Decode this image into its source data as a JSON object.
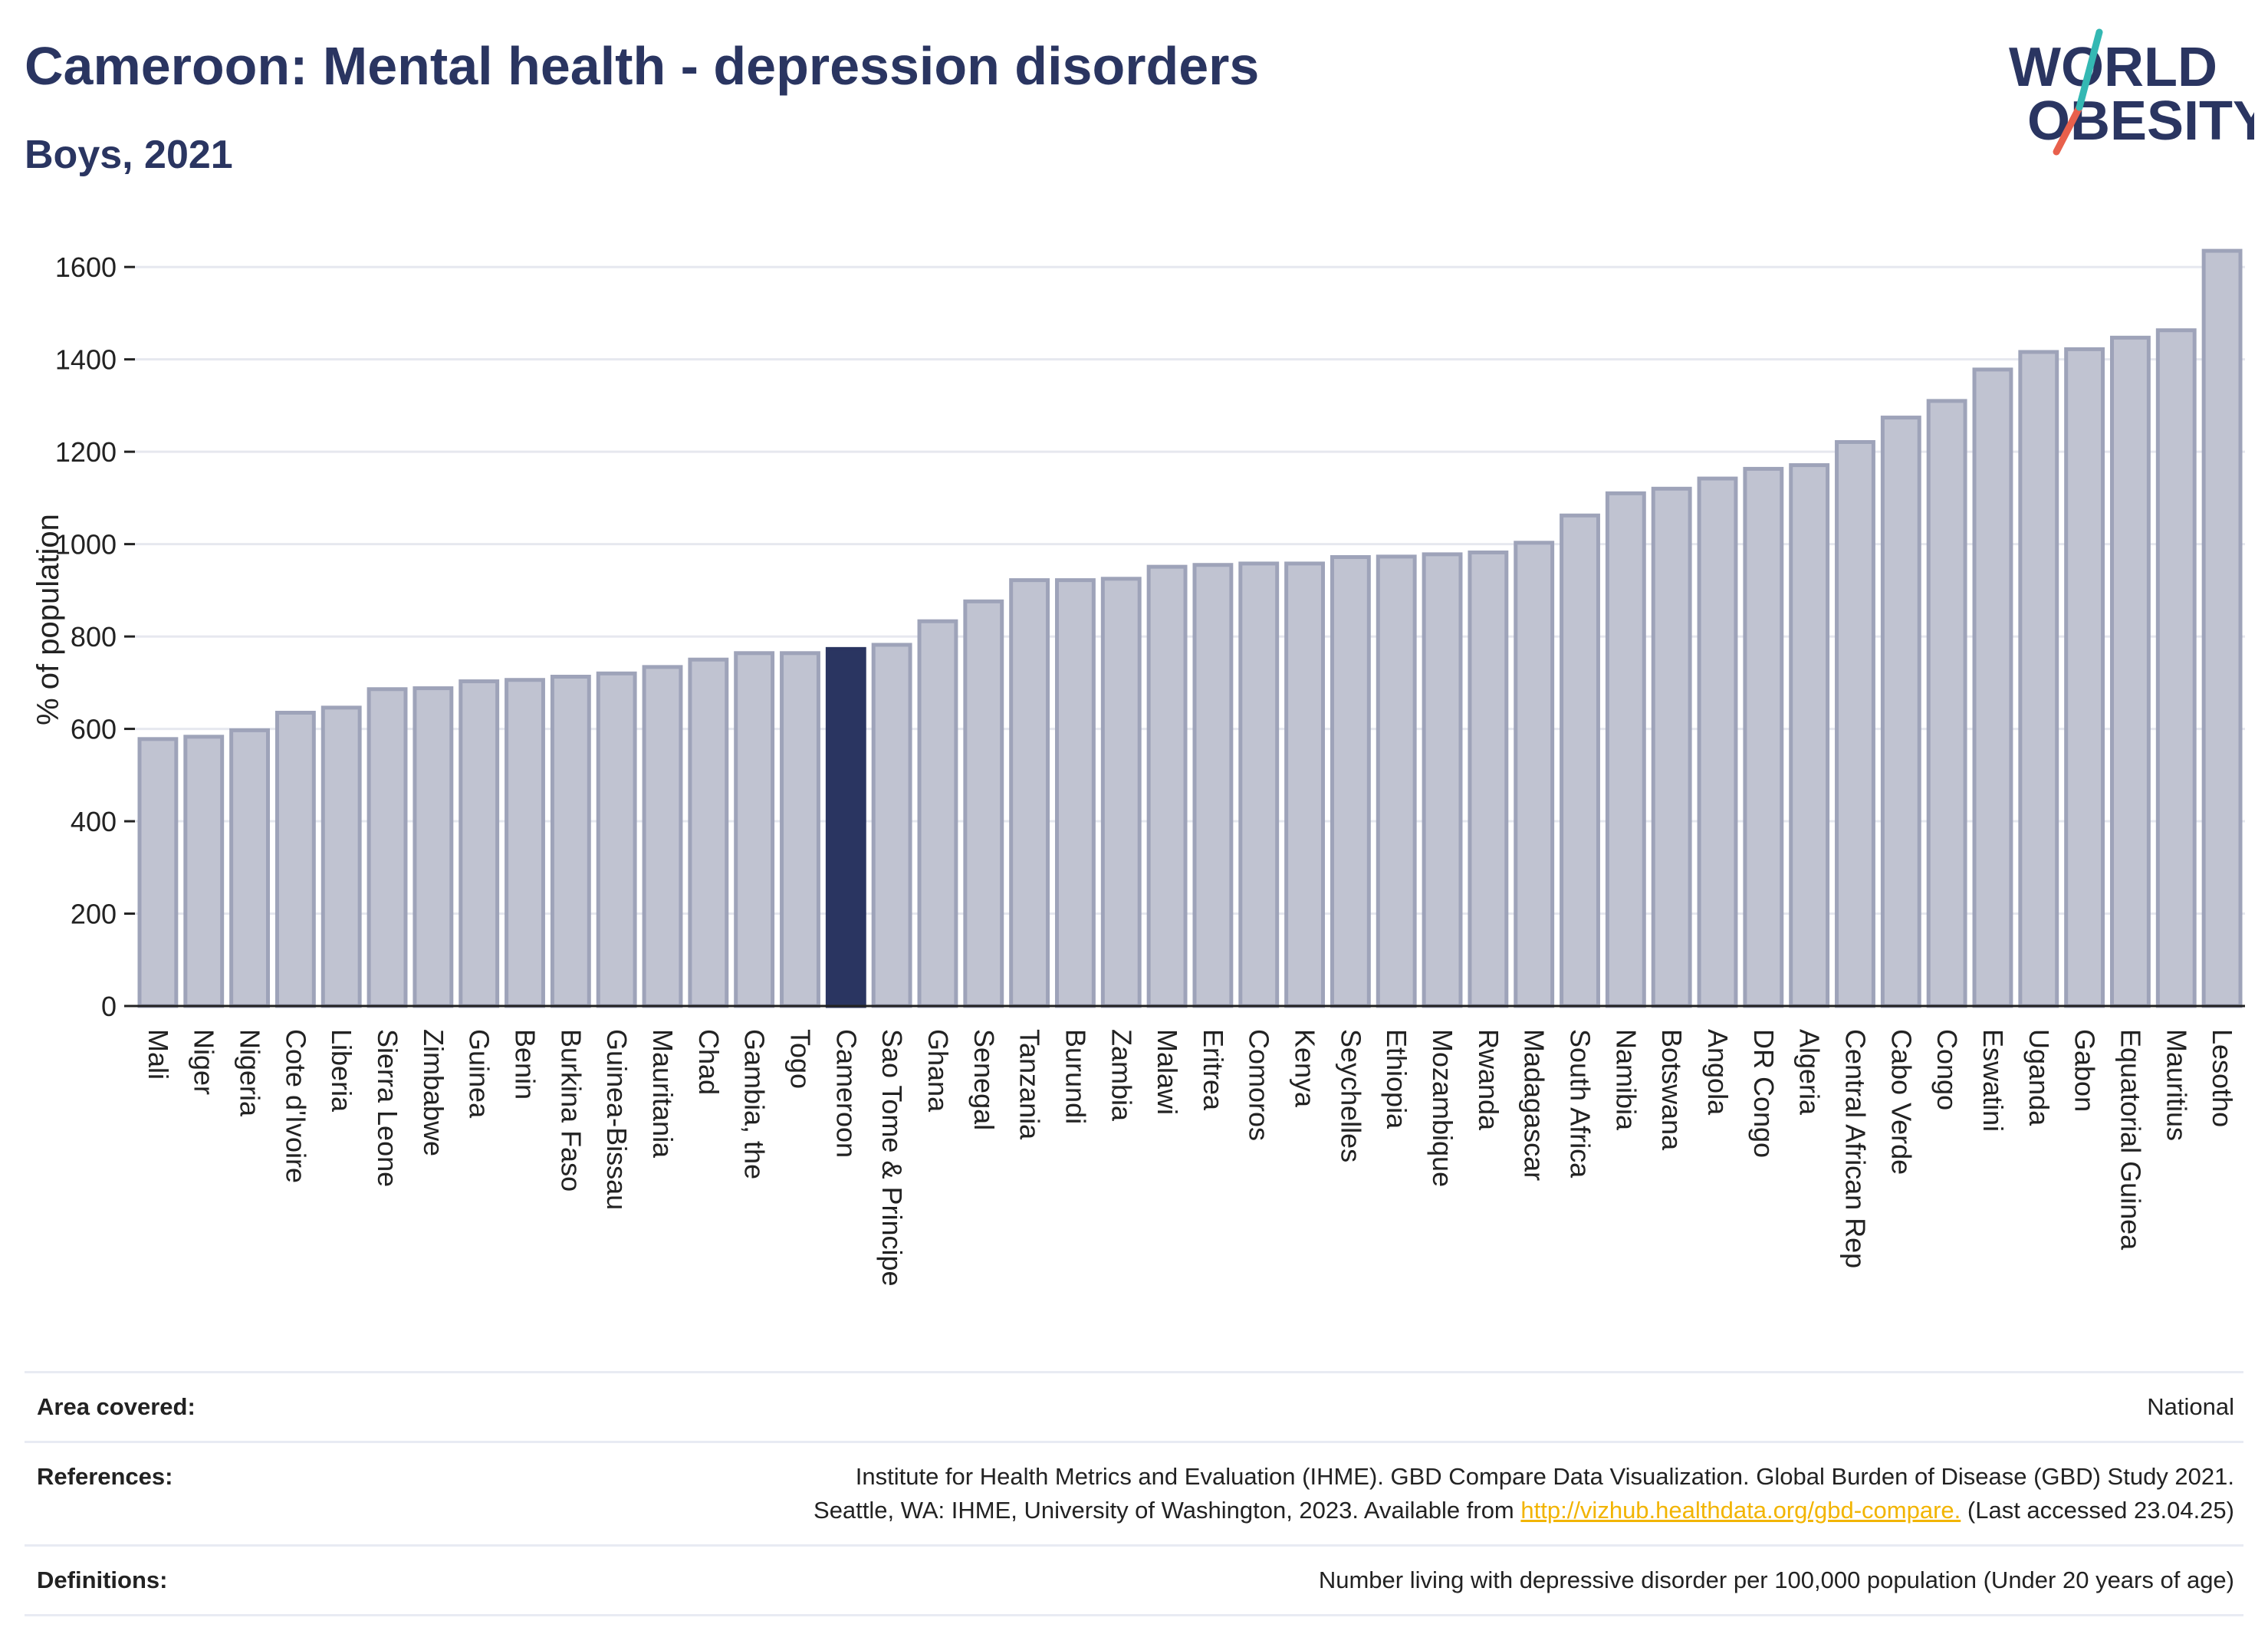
{
  "header": {
    "title": "Cameroon: Mental health - depression disorders",
    "subtitle": "Boys, 2021"
  },
  "logo": {
    "line1": "WORLD",
    "line2": "OBESITY"
  },
  "colors": {
    "bar": "#c0c3d1",
    "bar_edge": "#9ea3b9",
    "highlight": "#2a3561",
    "grid": "#e6e8ef"
  },
  "chart_data": {
    "type": "bar",
    "title": "Cameroon: Mental health - depression disorders",
    "subtitle": "Boys, 2021",
    "ylabel": "% of population",
    "xlabel": "",
    "ylim": [
      0,
      1680
    ],
    "yticks": [
      0,
      200,
      400,
      600,
      800,
      1000,
      1200,
      1400,
      1600
    ],
    "grid": true,
    "highlight": "Cameroon",
    "categories": [
      "Mali",
      "Niger",
      "Nigeria",
      "Cote d'Ivoire",
      "Liberia",
      "Sierra Leone",
      "Zimbabwe",
      "Guinea",
      "Benin",
      "Burkina Faso",
      "Guinea-Bissau",
      "Mauritania",
      "Chad",
      "Gambia, the",
      "Togo",
      "Cameroon",
      "Sao Tome & Principe",
      "Ghana",
      "Senegal",
      "Tanzania",
      "Burundi",
      "Zambia",
      "Malawi",
      "Eritrea",
      "Comoros",
      "Kenya",
      "Seychelles",
      "Ethiopia",
      "Mozambique",
      "Rwanda",
      "Madagascar",
      "South Africa",
      "Namibia",
      "Botswana",
      "Angola",
      "DR Congo",
      "Algeria",
      "Central African Rep",
      "Cabo Verde",
      "Congo",
      "Eswatini",
      "Uganda",
      "Gabon",
      "Equatorial Guinea",
      "Mauritius",
      "Lesotho"
    ],
    "values": [
      578,
      583,
      597,
      635,
      646,
      686,
      688,
      703,
      706,
      713,
      720,
      734,
      750,
      764,
      764,
      773,
      782,
      833,
      876,
      922,
      922,
      925,
      951,
      955,
      958,
      958,
      972,
      973,
      978,
      982,
      1003,
      1062,
      1110,
      1120,
      1142,
      1163,
      1171,
      1221,
      1274,
      1310,
      1378,
      1416,
      1422,
      1447,
      1463,
      1635
    ]
  },
  "info": {
    "area_label": "Area covered:",
    "area_value": "National",
    "references_label": "References:",
    "references_line1": "Institute for Health Metrics and Evaluation (IHME). GBD Compare Data Visualization. Global Burden of Disease (GBD) Study 2021.",
    "references_line2_pre": "Seattle, WA: IHME, University of Washington, 2023. Available from",
    "references_link": "http://vizhub.healthdata.org/gbd-compare.",
    "references_line2_post": "(Last accessed 23.04.25)",
    "definitions_label": "Definitions:",
    "definitions_value": "Number living with depressive disorder per 100,000 population (Under 20 years of age)"
  }
}
